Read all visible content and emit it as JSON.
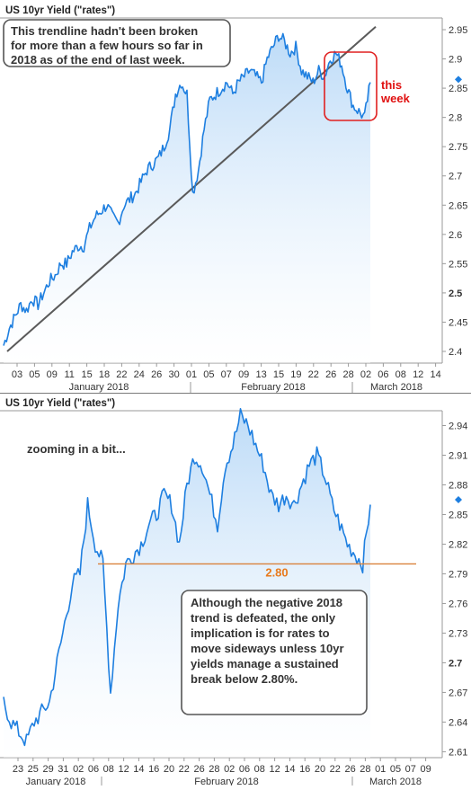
{
  "chart_data": [
    {
      "type": "area",
      "title": "US 10yr Yield (\"rates\")",
      "ylim": [
        2.38,
        2.97
      ],
      "y_ticks": [
        2.95,
        2.9,
        2.85,
        2.8,
        2.75,
        2.7,
        2.65,
        2.6,
        2.55,
        2.5,
        2.45,
        2.4
      ],
      "y_ticks_bold": [
        2.5
      ],
      "x_tick_labels": [
        "03",
        "05",
        "09",
        "11",
        "15",
        "18",
        "22",
        "24",
        "26",
        "30",
        "01",
        "05",
        "07",
        "09",
        "13",
        "15",
        "19",
        "22",
        "26",
        "28",
        "02",
        "06",
        "08",
        "12",
        "14"
      ],
      "months": [
        "January 2018",
        "February 2018",
        "March 2018"
      ],
      "grid": false,
      "series": [
        {
          "values": [
            2.41,
            2.44,
            2.46,
            2.48,
            2.47,
            2.49,
            2.48,
            2.5,
            2.52,
            2.53,
            2.55,
            2.55,
            2.57,
            2.58,
            2.58,
            2.61,
            2.63,
            2.64,
            2.65,
            2.63,
            2.62,
            2.65,
            2.66,
            2.67,
            2.69,
            2.71,
            2.72,
            2.73,
            2.75,
            2.78,
            2.84,
            2.86,
            2.84,
            2.67,
            2.71,
            2.78,
            2.83,
            2.84,
            2.85,
            2.86,
            2.84,
            2.86,
            2.87,
            2.88,
            2.87,
            2.86,
            2.9,
            2.92,
            2.94,
            2.93,
            2.91,
            2.92,
            2.88,
            2.87,
            2.86,
            2.88,
            2.87,
            2.9,
            2.91,
            2.89,
            2.85,
            2.82,
            2.81,
            2.8,
            2.86
          ]
        }
      ],
      "current_value_marker": 2.865,
      "trendline": {
        "start": 2.4,
        "end": 2.955
      },
      "annotations": [
        "This trendline hadn't been broken for more than a few hours so far in 2018 as of the end of last week.",
        "this week"
      ]
    },
    {
      "type": "area",
      "title": "US 10yr Yield (\"rates\")",
      "ylim": [
        2.604,
        2.955
      ],
      "y_ticks": [
        2.94,
        2.91,
        2.88,
        2.85,
        2.82,
        2.79,
        2.76,
        2.73,
        2.7,
        2.67,
        2.64,
        2.61
      ],
      "y_ticks_bold": [
        2.7
      ],
      "x_tick_labels": [
        "23",
        "25",
        "29",
        "31",
        "02",
        "06",
        "08",
        "12",
        "14",
        "16",
        "20",
        "22",
        "26",
        "28",
        "02",
        "06",
        "08",
        "12",
        "14",
        "16",
        "20",
        "22",
        "26",
        "28",
        "01",
        "05",
        "07",
        "09"
      ],
      "months": [
        "January 2018",
        "February 2018",
        "March 2018"
      ],
      "grid": false,
      "series": [
        {
          "values": [
            2.66,
            2.64,
            2.63,
            2.62,
            2.64,
            2.65,
            2.66,
            2.7,
            2.74,
            2.78,
            2.79,
            2.86,
            2.82,
            2.8,
            2.67,
            2.76,
            2.8,
            2.81,
            2.82,
            2.84,
            2.85,
            2.87,
            2.86,
            2.82,
            2.88,
            2.91,
            2.9,
            2.87,
            2.84,
            2.9,
            2.92,
            2.95,
            2.94,
            2.92,
            2.9,
            2.87,
            2.86,
            2.87,
            2.86,
            2.88,
            2.9,
            2.91,
            2.89,
            2.86,
            2.84,
            2.82,
            2.81,
            2.8,
            2.86
          ]
        }
      ],
      "current_value_marker": 2.865,
      "reference_line": {
        "value": 2.8,
        "label": "2.80"
      },
      "annotations": [
        "zooming in a bit...",
        "Although the negative 2018 trend is defeated, the only implication is for rates to move sideways unless 10yr yields manage a sustained break below 2.80%."
      ]
    }
  ]
}
